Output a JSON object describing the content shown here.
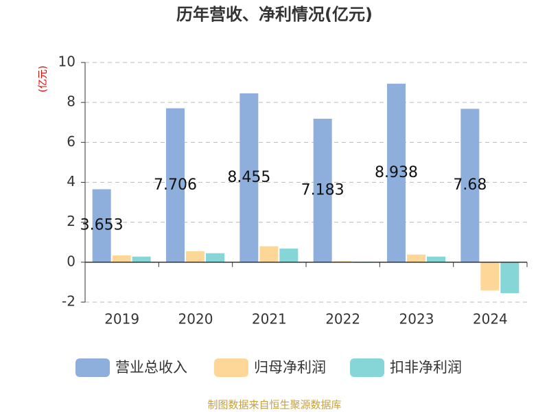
{
  "chart_data": {
    "type": "bar",
    "title": "历年营收、净利情况(亿元)",
    "y_label": "(亿元)",
    "categories": [
      "2019",
      "2020",
      "2021",
      "2022",
      "2023",
      "2024"
    ],
    "series": [
      {
        "name": "营业总收入",
        "color": "#8eaedb",
        "values": [
          3.653,
          7.706,
          8.455,
          7.183,
          8.938,
          7.68
        ],
        "show_labels": true
      },
      {
        "name": "归母净利润",
        "color": "#fdd797",
        "values": [
          0.34,
          0.55,
          0.8,
          0.05,
          0.38,
          -1.41
        ]
      },
      {
        "name": "扣非净利润",
        "color": "#86d5d7",
        "values": [
          0.28,
          0.45,
          0.68,
          -0.03,
          0.28,
          -1.55
        ]
      }
    ],
    "ylim": [
      -2,
      10
    ],
    "yticks": [
      -2,
      0,
      2,
      4,
      6,
      8,
      10
    ],
    "grid": true,
    "source": "制图数据来自恒生聚源数据库"
  }
}
